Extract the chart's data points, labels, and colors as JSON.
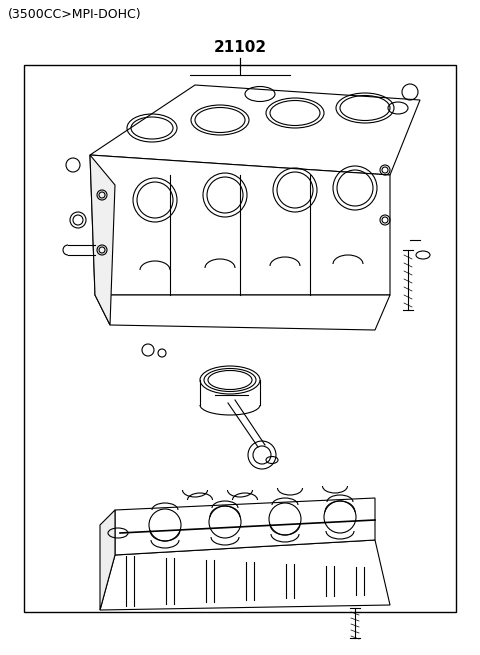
{
  "title_top_left": "(3500CC>MPI-DOHC)",
  "part_number": "21102",
  "bg_color": "#ffffff",
  "border_color": "#000000",
  "line_color": "#000000",
  "title_fontsize": 9,
  "part_number_fontsize": 11,
  "border": [
    0.05,
    0.05,
    0.95,
    0.93
  ],
  "figsize": [
    4.8,
    6.55
  ],
  "dpi": 100
}
